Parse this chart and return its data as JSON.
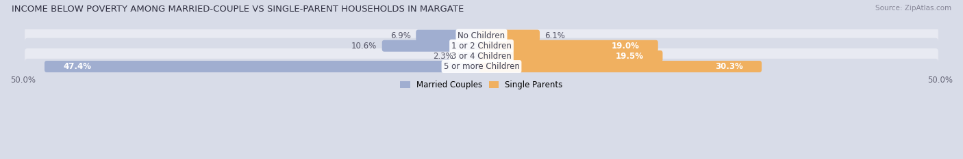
{
  "title": "INCOME BELOW POVERTY AMONG MARRIED-COUPLE VS SINGLE-PARENT HOUSEHOLDS IN MARGATE",
  "source": "Source: ZipAtlas.com",
  "categories": [
    "No Children",
    "1 or 2 Children",
    "3 or 4 Children",
    "5 or more Children"
  ],
  "married_values": [
    6.9,
    10.6,
    2.3,
    47.4
  ],
  "single_values": [
    6.1,
    19.0,
    19.5,
    30.3
  ],
  "married_color": "#a0aed0",
  "single_color": "#f0b060",
  "row_bg_light": "#e8eaf2",
  "row_bg_dark": "#d8dce8",
  "fig_bg": "#d8dce8",
  "axis_max": 50.0,
  "legend_labels": [
    "Married Couples",
    "Single Parents"
  ],
  "title_fontsize": 9.5,
  "label_fontsize": 8.5,
  "category_fontsize": 8.5,
  "axis_fontsize": 8.5,
  "source_fontsize": 7.5
}
